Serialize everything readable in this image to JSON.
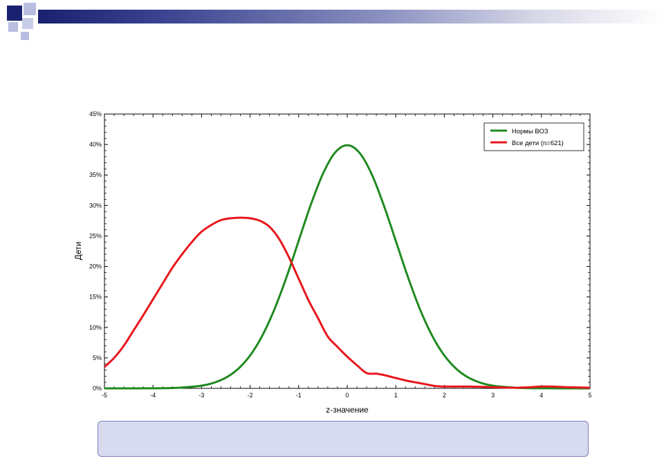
{
  "colors": {
    "who": "#1f8a1f",
    "children": "#e8161c",
    "slide_dark": "#1a2170",
    "slide_light": "#b9bde0"
  },
  "chart_data": {
    "type": "line",
    "xlabel": "z-значение",
    "ylabel": "Дети",
    "xlim": [
      -5,
      5
    ],
    "ylim": [
      0,
      45
    ],
    "x_ticks": [
      "-5",
      "-4",
      "-3",
      "-2",
      "-1",
      "0",
      "1",
      "2",
      "3",
      "4",
      "5"
    ],
    "y_ticks": [
      "0%",
      "5%",
      "10%",
      "15%",
      "20%",
      "25%",
      "30%",
      "35%",
      "40%",
      "45%"
    ],
    "legend_position": "top-right",
    "grid": false,
    "series": [
      {
        "name": "Нормы ВОЗ",
        "color": "#1f8a1f",
        "x": [
          -5,
          -4.5,
          -4,
          -3.5,
          -3,
          -2.75,
          -2.5,
          -2.25,
          -2,
          -1.75,
          -1.5,
          -1.25,
          -1,
          -0.75,
          -0.5,
          -0.25,
          0,
          0.25,
          0.5,
          0.75,
          1,
          1.25,
          1.5,
          1.75,
          2,
          2.25,
          2.5,
          2.75,
          3,
          3.5,
          4,
          4.5,
          5
        ],
        "y": [
          0,
          0,
          0.01,
          0.09,
          0.44,
          0.91,
          1.75,
          3.17,
          5.4,
          8.63,
          12.95,
          18.26,
          24.2,
          30.11,
          35.21,
          38.67,
          39.89,
          38.67,
          35.21,
          30.11,
          24.2,
          18.26,
          12.95,
          8.63,
          5.4,
          3.17,
          1.75,
          0.91,
          0.44,
          0.09,
          0.01,
          0,
          0
        ]
      },
      {
        "name": "Все дети (n=621)",
        "color": "#e8161c",
        "x": [
          -5,
          -4.8,
          -4.6,
          -4.4,
          -4.2,
          -4,
          -3.8,
          -3.6,
          -3.4,
          -3.2,
          -3,
          -2.8,
          -2.6,
          -2.4,
          -2.2,
          -2,
          -1.8,
          -1.6,
          -1.4,
          -1.2,
          -1,
          -0.8,
          -0.6,
          -0.4,
          -0.2,
          0,
          0.2,
          0.4,
          0.6,
          0.8,
          1,
          1.2,
          1.4,
          1.6,
          1.8,
          2,
          2.5,
          3,
          3.5,
          4,
          4.2,
          4.5,
          5
        ],
        "y": [
          3.5,
          5,
          7,
          9.5,
          12,
          14.6,
          17.2,
          19.8,
          22,
          24,
          25.7,
          26.8,
          27.6,
          27.9,
          28,
          27.9,
          27.5,
          26.5,
          24.5,
          21.5,
          18,
          14.5,
          11.5,
          8.5,
          6.8,
          5.2,
          3.8,
          2.5,
          2.4,
          2.1,
          1.7,
          1.3,
          1,
          0.7,
          0.4,
          0.3,
          0.3,
          0.2,
          0.1,
          0.3,
          0.3,
          0.2,
          0.1
        ]
      }
    ]
  }
}
